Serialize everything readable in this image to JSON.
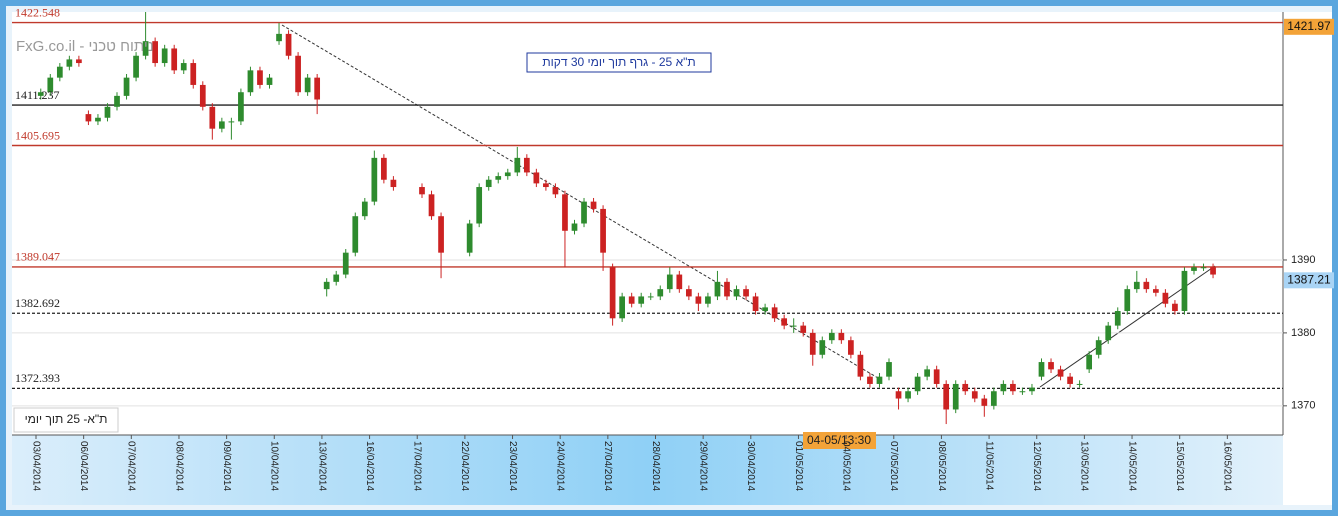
{
  "chart_data": {
    "type": "candlestick",
    "title": "ת\"א 25 - גרף תוך יומי 30 דקות",
    "watermark": "FxG.co.il - ניתוח טכני",
    "footer_label": "ת\"א- 25 תוך יומי",
    "crosshair_label": "04-05/13:30",
    "ylim": [
      1366,
      1424
    ],
    "yticks": [
      1370,
      1380,
      1390
    ],
    "grid": true,
    "up_color": "#2e8b2e",
    "down_color": "#cc2222",
    "high_marker": 1421.97,
    "last_price": 1387.21,
    "levels": [
      {
        "value": 1422.548,
        "color": "#c0392b",
        "dashed": false
      },
      {
        "value": 1411.237,
        "color": "#222222",
        "dashed": false
      },
      {
        "value": 1405.695,
        "color": "#c0392b",
        "dashed": false
      },
      {
        "value": 1389.047,
        "color": "#c0392b",
        "dashed": false
      },
      {
        "value": 1382.692,
        "color": "#222222",
        "dashed": true
      },
      {
        "value": 1372.393,
        "color": "#222222",
        "dashed": true
      }
    ],
    "days": [
      {
        "label": "03/04/2014",
        "candles": [
          [
            1412.5,
            1413.5,
            1412,
            1413
          ],
          [
            1413,
            1415.5,
            1412.5,
            1415
          ],
          [
            1415,
            1417,
            1414.5,
            1416.5
          ],
          [
            1416.5,
            1418,
            1416,
            1417.5
          ],
          [
            1417.5,
            1418,
            1416.5,
            1417
          ]
        ]
      },
      {
        "label": "06/04/2014",
        "candles": [
          [
            1410,
            1410.5,
            1408.5,
            1409
          ],
          [
            1409,
            1410,
            1408.5,
            1409.5
          ],
          [
            1409.5,
            1411.5,
            1409,
            1411
          ],
          [
            1411,
            1413,
            1410.5,
            1412.5
          ],
          [
            1412.5,
            1415.5,
            1412,
            1415
          ]
        ]
      },
      {
        "label": "07/04/2014",
        "candles": [
          [
            1415,
            1418.5,
            1414.5,
            1418
          ],
          [
            1418,
            1424,
            1417.5,
            1420
          ],
          [
            1420,
            1420.5,
            1416.5,
            1417
          ],
          [
            1417,
            1419.5,
            1416.5,
            1419
          ],
          [
            1419,
            1419.5,
            1415.5,
            1416
          ]
        ]
      },
      {
        "label": "08/04/2014",
        "candles": [
          [
            1416,
            1417.5,
            1415.5,
            1417
          ],
          [
            1417,
            1417.5,
            1413.5,
            1414
          ],
          [
            1414,
            1414.5,
            1410.5,
            1411
          ],
          [
            1411,
            1411.5,
            1406.5,
            1408
          ],
          [
            1408,
            1409.5,
            1407.5,
            1409
          ]
        ]
      },
      {
        "label": "09/04/2014",
        "candles": [
          [
            1409,
            1409.5,
            1406.5,
            1409
          ],
          [
            1409,
            1413.5,
            1408.5,
            1413
          ],
          [
            1413,
            1416.5,
            1412.5,
            1416
          ],
          [
            1416,
            1416.5,
            1413.5,
            1414
          ],
          [
            1414,
            1415.5,
            1413.5,
            1415
          ]
        ]
      },
      {
        "label": "10/04/2014",
        "candles": [
          [
            1420,
            1422.5,
            1419.5,
            1421
          ],
          [
            1421,
            1421.5,
            1417.5,
            1418
          ],
          [
            1418,
            1418.5,
            1412.5,
            1413
          ],
          [
            1413,
            1415.5,
            1412.5,
            1415
          ],
          [
            1415,
            1415.5,
            1410,
            1412
          ]
        ]
      },
      {
        "label": "13/04/2014",
        "candles": [
          [
            1386,
            1387.5,
            1385,
            1387
          ],
          [
            1387,
            1388.5,
            1386.5,
            1388
          ],
          [
            1388,
            1391.5,
            1387.5,
            1391
          ],
          [
            1391,
            1396.5,
            1390.5,
            1396
          ],
          [
            1396,
            1398.5,
            1395.5,
            1398
          ]
        ]
      },
      {
        "label": "16/04/2014",
        "candles": [
          [
            1398,
            1405,
            1397.5,
            1404
          ],
          [
            1404,
            1404.5,
            1400.5,
            1401
          ],
          [
            1401,
            1401.5,
            1399.5,
            1400
          ]
        ]
      },
      {
        "label": "17/04/2014",
        "candles": [
          [
            1400,
            1400.5,
            1398.5,
            1399
          ],
          [
            1399,
            1399.5,
            1395.5,
            1396
          ],
          [
            1396,
            1396.5,
            1387.5,
            1391
          ]
        ]
      },
      {
        "label": "22/04/2014",
        "candles": [
          [
            1391,
            1395.5,
            1390.5,
            1395
          ],
          [
            1395,
            1400.5,
            1394.5,
            1400
          ],
          [
            1400,
            1401.5,
            1399.5,
            1401
          ],
          [
            1401,
            1402,
            1400.5,
            1401.5
          ],
          [
            1401.5,
            1402.5,
            1401,
            1402
          ]
        ]
      },
      {
        "label": "23/04/2014",
        "candles": [
          [
            1402,
            1405.5,
            1401.5,
            1404
          ],
          [
            1404,
            1404.5,
            1401.5,
            1402
          ],
          [
            1402,
            1402.5,
            1400,
            1400.5
          ],
          [
            1400.5,
            1401,
            1399.5,
            1400
          ],
          [
            1400,
            1400.5,
            1398.5,
            1399
          ]
        ]
      },
      {
        "label": "24/04/2014",
        "candles": [
          [
            1399,
            1399.5,
            1389,
            1394
          ],
          [
            1394,
            1395.5,
            1393.5,
            1395
          ],
          [
            1395,
            1398.5,
            1394.5,
            1398
          ],
          [
            1398,
            1398.5,
            1396.5,
            1397
          ],
          [
            1397,
            1397.5,
            1388.5,
            1391
          ]
        ]
      },
      {
        "label": "27/04/2014",
        "candles": [
          [
            1389,
            1389.5,
            1381,
            1382
          ],
          [
            1382,
            1385.5,
            1381.5,
            1385
          ],
          [
            1385,
            1385.5,
            1383.5,
            1384
          ],
          [
            1384,
            1385.5,
            1383.5,
            1385
          ],
          [
            1385,
            1385.5,
            1384.5,
            1385
          ]
        ]
      },
      {
        "label": "28/04/2014",
        "candles": [
          [
            1385,
            1386.5,
            1384.5,
            1386
          ],
          [
            1386,
            1389,
            1385.5,
            1388
          ],
          [
            1388,
            1388.5,
            1385.5,
            1386
          ],
          [
            1386,
            1386.5,
            1384.5,
            1385
          ],
          [
            1385,
            1385.5,
            1383,
            1384
          ]
        ]
      },
      {
        "label": "29/04/2014",
        "candles": [
          [
            1384,
            1385.5,
            1383.5,
            1385
          ],
          [
            1385,
            1388.5,
            1384.5,
            1387
          ],
          [
            1387,
            1387.5,
            1384.5,
            1385
          ],
          [
            1385,
            1386.5,
            1384.5,
            1386
          ],
          [
            1386,
            1386.5,
            1384.5,
            1385
          ]
        ]
      },
      {
        "label": "30/04/2014",
        "candles": [
          [
            1385,
            1385.5,
            1382.5,
            1383
          ],
          [
            1383,
            1384,
            1382.5,
            1383.5
          ],
          [
            1383.5,
            1384,
            1381.5,
            1382
          ],
          [
            1382,
            1382.5,
            1380.5,
            1381
          ],
          [
            1381,
            1382,
            1380,
            1381
          ]
        ]
      },
      {
        "label": "01/05/2014",
        "candles": [
          [
            1381,
            1381.5,
            1379.5,
            1380
          ],
          [
            1380,
            1380.5,
            1375.5,
            1377
          ],
          [
            1377,
            1379.5,
            1376.5,
            1379
          ],
          [
            1379,
            1380.5,
            1378.5,
            1380
          ],
          [
            1380,
            1380.5,
            1378.5,
            1379
          ]
        ]
      },
      {
        "label": "04/05/2014",
        "candles": [
          [
            1379,
            1379.5,
            1376.5,
            1377
          ],
          [
            1377,
            1377.5,
            1373.5,
            1374
          ],
          [
            1374,
            1374.5,
            1372.5,
            1373
          ],
          [
            1373,
            1374.5,
            1372.5,
            1374
          ],
          [
            1374,
            1376.5,
            1373.5,
            1376
          ]
        ]
      },
      {
        "label": "07/05/2014",
        "candles": [
          [
            1372,
            1372.5,
            1369.5,
            1371
          ],
          [
            1371,
            1372.5,
            1370.5,
            1372
          ],
          [
            1372,
            1374.5,
            1371.5,
            1374
          ],
          [
            1374,
            1375.5,
            1373.5,
            1375
          ],
          [
            1375,
            1375.5,
            1372.5,
            1373
          ]
        ]
      },
      {
        "label": "08/05/2014",
        "candles": [
          [
            1373,
            1373.5,
            1367.5,
            1369.5
          ],
          [
            1369.5,
            1373.5,
            1369,
            1373
          ],
          [
            1373,
            1373.5,
            1371.5,
            1372
          ],
          [
            1372,
            1372.5,
            1370.5,
            1371
          ],
          [
            1371,
            1371.5,
            1368.5,
            1370
          ]
        ]
      },
      {
        "label": "11/05/2014",
        "candles": [
          [
            1370,
            1372.5,
            1369.5,
            1372
          ],
          [
            1372,
            1373.5,
            1371.5,
            1373
          ],
          [
            1373,
            1373.5,
            1371.5,
            1372
          ],
          [
            1372,
            1372.5,
            1371.5,
            1372
          ],
          [
            1372,
            1373,
            1371.5,
            1372.5
          ]
        ]
      },
      {
        "label": "12/05/2014",
        "candles": [
          [
            1374,
            1376.5,
            1373.5,
            1376
          ],
          [
            1376,
            1376.5,
            1374.5,
            1375
          ],
          [
            1375,
            1375.5,
            1373.5,
            1374
          ],
          [
            1374,
            1374.5,
            1372.5,
            1373
          ],
          [
            1373,
            1373.5,
            1372.5,
            1373
          ]
        ]
      },
      {
        "label": "13/05/2014",
        "candles": [
          [
            1375,
            1377.5,
            1374.5,
            1377
          ],
          [
            1377,
            1379.5,
            1376.5,
            1379
          ],
          [
            1379,
            1381.5,
            1378.5,
            1381
          ],
          [
            1381,
            1383.5,
            1380.5,
            1383
          ],
          [
            1383,
            1386.5,
            1382.5,
            1386
          ]
        ]
      },
      {
        "label": "14/05/2014",
        "candles": [
          [
            1386,
            1388.5,
            1385.5,
            1387
          ],
          [
            1387,
            1387.5,
            1385.5,
            1386
          ],
          [
            1386,
            1386.5,
            1385,
            1385.5
          ],
          [
            1385.5,
            1386,
            1383.5,
            1384
          ],
          [
            1384,
            1384.5,
            1382.5,
            1383
          ]
        ]
      },
      {
        "label": "15/05/2014",
        "candles": [
          [
            1383,
            1389,
            1382.5,
            1388.5
          ],
          [
            1388.5,
            1389.5,
            1388,
            1389
          ],
          [
            1389,
            1389.5,
            1388.5,
            1389
          ],
          [
            1389,
            1389.5,
            1387.5,
            1388
          ]
        ]
      },
      {
        "label": "16/05/2014",
        "candles": []
      }
    ]
  }
}
